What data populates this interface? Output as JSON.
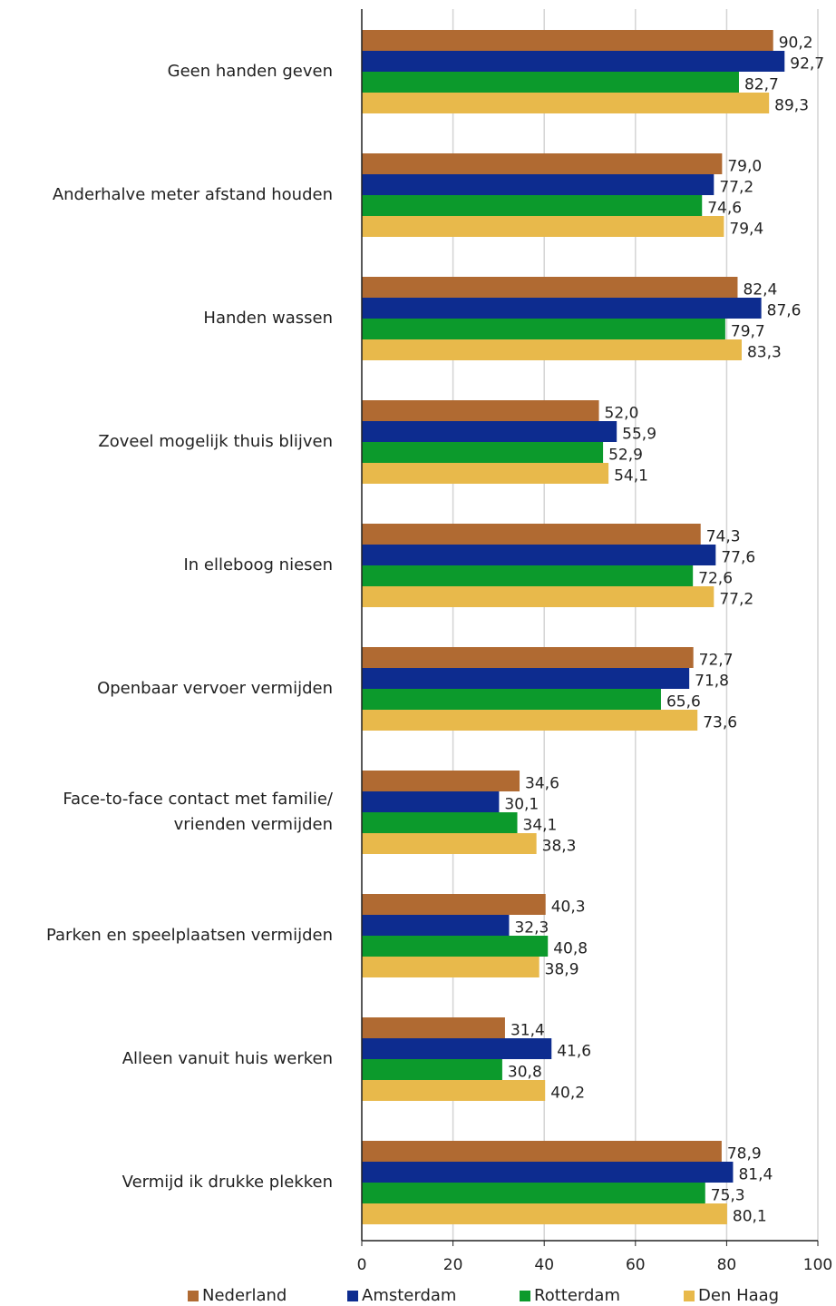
{
  "chart_data": {
    "type": "hbar",
    "categories": [
      "Geen handen geven",
      "Anderhalve meter afstand houden",
      "Handen wassen",
      "Zoveel mogelijk thuis blijven",
      "In elleboog niesen",
      "Openbaar vervoer vermijden",
      "Face-to-face contact met familie/\nvrienden vermijden",
      "Parken en speelplaatsen vermijden",
      "Alleen vanuit huis werken",
      "Vermijd ik drukke plekken"
    ],
    "series": [
      {
        "name": "Nederland",
        "color": "#b06a32",
        "values": [
          90.2,
          79.0,
          82.4,
          52.0,
          74.3,
          72.7,
          34.6,
          40.3,
          31.4,
          78.9
        ],
        "value_labels": [
          "90,2",
          "79,0",
          "82,4",
          "52,0",
          "74,3",
          "72,7",
          "34,6",
          "40,3",
          "31,4",
          "78,9"
        ]
      },
      {
        "name": "Amsterdam",
        "color": "#0d2c8f",
        "values": [
          92.7,
          77.2,
          87.6,
          55.9,
          77.6,
          71.8,
          30.1,
          32.3,
          41.6,
          81.4
        ],
        "value_labels": [
          "92,7",
          "77,2",
          "87,6",
          "55,9",
          "77,6",
          "71,8",
          "30,1",
          "32,3",
          "41,6",
          "81,4"
        ]
      },
      {
        "name": "Rotterdam",
        "color": "#0c9a2c",
        "values": [
          82.7,
          74.6,
          79.7,
          52.9,
          72.6,
          65.6,
          34.1,
          40.8,
          30.8,
          75.3
        ],
        "value_labels": [
          "82,7",
          "74,6",
          "79,7",
          "52,9",
          "72,6",
          "65,6",
          "34,1",
          "40,8",
          "30,8",
          "75,3"
        ]
      },
      {
        "name": "Den Haag",
        "color": "#e8b94b",
        "values": [
          89.3,
          79.4,
          83.3,
          54.1,
          77.2,
          73.6,
          38.3,
          38.9,
          40.2,
          80.1
        ],
        "value_labels": [
          "89,3",
          "79,4",
          "83,3",
          "54,1",
          "77,2",
          "73,6",
          "38,3",
          "38,9",
          "40,2",
          "80,1"
        ]
      }
    ],
    "xlim": [
      0,
      100
    ],
    "xticks": [
      0,
      20,
      40,
      60,
      80,
      100
    ],
    "grid": true
  }
}
